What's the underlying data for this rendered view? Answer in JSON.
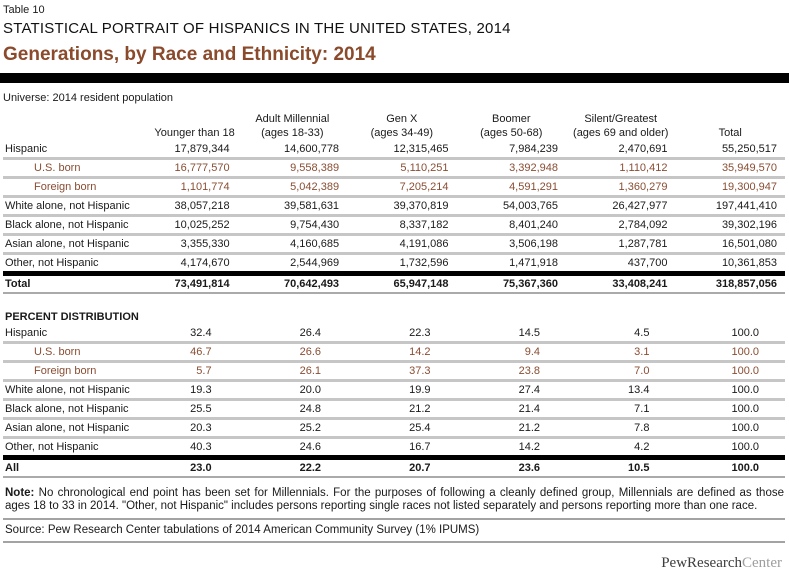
{
  "header": {
    "table_label": "Table 10",
    "report_title": "STATISTICAL PORTRAIT OF HISPANICS IN THE UNITED STATES, 2014",
    "chart_title": "Generations, by Race and Ethnicity: 2014",
    "universe": "Universe: 2014 resident population"
  },
  "colors": {
    "title_brown": "#8a4a2b",
    "subrow_brown": "#8a4d33",
    "row_separator_gray": "#c6c6c6",
    "divider_gray": "#a3a3a3",
    "bar_black": "#000000"
  },
  "columns": [
    {
      "line1": "",
      "line2": "Younger than 18"
    },
    {
      "line1": "Adult Millennial",
      "line2": "(ages 18-33)"
    },
    {
      "line1": "Gen X",
      "line2": "(ages 34-49)"
    },
    {
      "line1": "Boomer",
      "line2": "(ages 50-68)"
    },
    {
      "line1": "Silent/Greatest",
      "line2": "(ages 69 and older)"
    },
    {
      "line1": "",
      "line2": "Total"
    }
  ],
  "counts": {
    "rows": [
      {
        "label": "Hispanic",
        "values": [
          "17,879,344",
          "14,600,778",
          "12,315,465",
          "7,984,239",
          "2,470,691",
          "55,250,517"
        ]
      },
      {
        "label": "U.S. born",
        "values": [
          "16,777,570",
          "9,558,389",
          "5,110,251",
          "3,392,948",
          "1,110,412",
          "35,949,570"
        ]
      },
      {
        "label": "Foreign born",
        "values": [
          "1,101,774",
          "5,042,389",
          "7,205,214",
          "4,591,291",
          "1,360,279",
          "19,300,947"
        ]
      },
      {
        "label": "White alone, not Hispanic",
        "values": [
          "38,057,218",
          "39,581,631",
          "39,370,819",
          "54,003,765",
          "26,427,977",
          "197,441,410"
        ]
      },
      {
        "label": "Black alone, not Hispanic",
        "values": [
          "10,025,252",
          "9,754,430",
          "8,337,182",
          "8,401,240",
          "2,784,092",
          "39,302,196"
        ]
      },
      {
        "label": "Asian alone, not Hispanic",
        "values": [
          "3,355,330",
          "4,160,685",
          "4,191,086",
          "3,506,198",
          "1,287,781",
          "16,501,080"
        ]
      },
      {
        "label": "Other, not Hispanic",
        "values": [
          "4,174,670",
          "2,544,969",
          "1,732,596",
          "1,471,918",
          "437,700",
          "10,361,853"
        ]
      },
      {
        "label": "Total",
        "values": [
          "73,491,814",
          "70,642,493",
          "65,947,148",
          "75,367,360",
          "33,408,241",
          "318,857,056"
        ]
      }
    ]
  },
  "percent": {
    "section_title": "PERCENT DISTRIBUTION",
    "rows": [
      {
        "label": "Hispanic",
        "values": [
          "32.4",
          "26.4",
          "22.3",
          "14.5",
          "4.5",
          "100.0"
        ]
      },
      {
        "label": "U.S. born",
        "values": [
          "46.7",
          "26.6",
          "14.2",
          "9.4",
          "3.1",
          "100.0"
        ]
      },
      {
        "label": "Foreign born",
        "values": [
          "5.7",
          "26.1",
          "37.3",
          "23.8",
          "7.0",
          "100.0"
        ]
      },
      {
        "label": "White alone, not Hispanic",
        "values": [
          "19.3",
          "20.0",
          "19.9",
          "27.4",
          "13.4",
          "100.0"
        ]
      },
      {
        "label": "Black alone, not Hispanic",
        "values": [
          "25.5",
          "24.8",
          "21.2",
          "21.4",
          "7.1",
          "100.0"
        ]
      },
      {
        "label": "Asian alone, not Hispanic",
        "values": [
          "20.3",
          "25.2",
          "25.4",
          "21.2",
          "7.8",
          "100.0"
        ]
      },
      {
        "label": "Other, not Hispanic",
        "values": [
          "40.3",
          "24.6",
          "16.7",
          "14.2",
          "4.2",
          "100.0"
        ]
      },
      {
        "label": "All",
        "values": [
          "23.0",
          "22.2",
          "20.7",
          "23.6",
          "10.5",
          "100.0"
        ]
      }
    ]
  },
  "notes": {
    "note_label": "Note:",
    "note_text": "No chronological end point has been set for Millennials. For the purposes of following a cleanly defined group, Millennials are defined as those ages 18 to 33 in 2014. \"Other, not Hispanic\" includes persons reporting single races not listed separately and persons reporting more than one race.",
    "source": "Source: Pew Research Center tabulations of 2014 American Community Survey (1% IPUMS)"
  },
  "footer": {
    "logo_part1": "PewResearch",
    "logo_part2": "Center"
  }
}
